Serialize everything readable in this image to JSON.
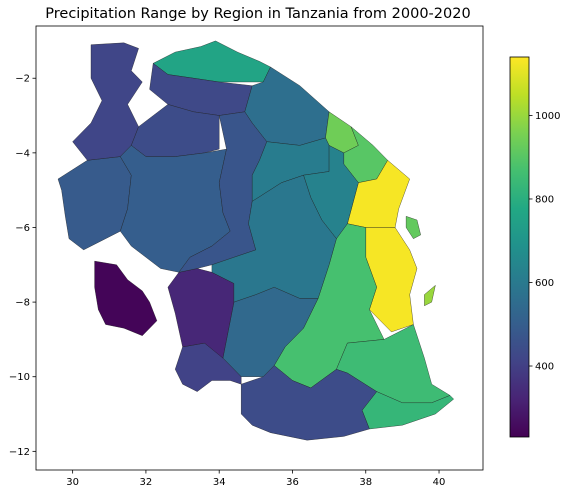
{
  "chart_data": {
    "type": "choropleth",
    "title": "Precipitation Range by Region in Tanzania from 2000-2020",
    "xlabel": "",
    "ylabel": "",
    "xlim": [
      29.0,
      41.2
    ],
    "ylim": [
      -12.5,
      -0.6
    ],
    "x_ticks": [
      30,
      32,
      34,
      36,
      38,
      40
    ],
    "y_ticks": [
      -2,
      -4,
      -6,
      -8,
      -10,
      -12
    ],
    "grid": false,
    "colormap": "viridis",
    "colorbar": {
      "range": [
        230,
        1140
      ],
      "ticks": [
        400,
        600,
        800,
        1000
      ],
      "placement": "right"
    },
    "regions": [
      {
        "value": 760,
        "coords": [
          [
            32.2,
            -1.6
          ],
          [
            32.8,
            -1.3
          ],
          [
            33.5,
            -1.15
          ],
          [
            33.9,
            -1.0
          ],
          [
            34.5,
            -1.3
          ],
          [
            35.1,
            -1.55
          ],
          [
            35.4,
            -1.7
          ],
          [
            35.2,
            -2.1
          ],
          [
            34.0,
            -2.1
          ],
          [
            33.3,
            -2.0
          ],
          [
            32.6,
            -1.9
          ]
        ]
      },
      {
        "value": 430,
        "coords": [
          [
            32.2,
            -1.6
          ],
          [
            32.6,
            -1.9
          ],
          [
            33.3,
            -2.0
          ],
          [
            34.0,
            -2.1
          ],
          [
            34.9,
            -2.2
          ],
          [
            34.7,
            -2.9
          ],
          [
            34.0,
            -3.0
          ],
          [
            33.3,
            -2.9
          ],
          [
            32.6,
            -2.7
          ],
          [
            32.1,
            -2.3
          ]
        ]
      },
      {
        "value": 560,
        "coords": [
          [
            34.9,
            -2.2
          ],
          [
            35.2,
            -2.1
          ],
          [
            35.4,
            -1.7
          ],
          [
            36.2,
            -2.2
          ],
          [
            37.0,
            -2.9
          ],
          [
            36.9,
            -3.6
          ],
          [
            36.2,
            -3.8
          ],
          [
            35.3,
            -3.7
          ],
          [
            34.9,
            -3.2
          ],
          [
            34.7,
            -2.9
          ]
        ]
      },
      {
        "value": 940,
        "coords": [
          [
            37.0,
            -2.9
          ],
          [
            37.6,
            -3.3
          ],
          [
            37.8,
            -3.8
          ],
          [
            37.4,
            -4.0
          ],
          [
            37.0,
            -3.8
          ],
          [
            36.9,
            -3.6
          ]
        ]
      },
      {
        "value": 900,
        "coords": [
          [
            37.6,
            -3.3
          ],
          [
            38.2,
            -3.8
          ],
          [
            38.6,
            -4.2
          ],
          [
            38.3,
            -4.7
          ],
          [
            37.8,
            -4.8
          ],
          [
            37.4,
            -4.3
          ],
          [
            37.4,
            -4.0
          ],
          [
            37.8,
            -3.8
          ]
        ]
      },
      {
        "value": 1130,
        "coords": [
          [
            38.6,
            -4.2
          ],
          [
            39.2,
            -4.7
          ],
          [
            38.9,
            -5.5
          ],
          [
            38.8,
            -6.0
          ],
          [
            38.0,
            -6.0
          ],
          [
            37.5,
            -5.9
          ],
          [
            37.8,
            -4.8
          ],
          [
            38.3,
            -4.7
          ]
        ]
      },
      {
        "value": 1130,
        "coords": [
          [
            38.8,
            -6.0
          ],
          [
            39.2,
            -6.6
          ],
          [
            39.4,
            -7.1
          ],
          [
            39.2,
            -7.8
          ],
          [
            39.3,
            -8.6
          ],
          [
            38.7,
            -8.8
          ],
          [
            38.1,
            -8.2
          ],
          [
            38.3,
            -7.6
          ],
          [
            38.0,
            -6.8
          ],
          [
            38.0,
            -6.0
          ]
        ]
      },
      {
        "value": 920,
        "coords": [
          [
            39.1,
            -5.7
          ],
          [
            39.4,
            -5.8
          ],
          [
            39.5,
            -6.2
          ],
          [
            39.3,
            -6.3
          ],
          [
            39.1,
            -6.0
          ]
        ]
      },
      {
        "value": 1000,
        "coords": [
          [
            39.6,
            -7.8
          ],
          [
            39.9,
            -7.55
          ],
          [
            39.8,
            -8.0
          ],
          [
            39.6,
            -8.1
          ]
        ]
      },
      {
        "value": 870,
        "coords": [
          [
            37.5,
            -5.9
          ],
          [
            38.0,
            -6.0
          ],
          [
            38.0,
            -6.8
          ],
          [
            38.3,
            -7.6
          ],
          [
            38.1,
            -8.2
          ],
          [
            38.5,
            -9.0
          ],
          [
            37.5,
            -9.1
          ],
          [
            37.2,
            -9.8
          ],
          [
            36.5,
            -10.3
          ],
          [
            36.0,
            -10.1
          ],
          [
            35.5,
            -9.7
          ],
          [
            35.8,
            -9.2
          ],
          [
            36.3,
            -8.7
          ],
          [
            36.7,
            -7.9
          ],
          [
            37.0,
            -7.0
          ],
          [
            37.2,
            -6.3
          ]
        ]
      },
      {
        "value": 850,
        "coords": [
          [
            38.5,
            -9.0
          ],
          [
            39.3,
            -8.6
          ],
          [
            39.6,
            -9.5
          ],
          [
            39.8,
            -10.2
          ],
          [
            40.3,
            -10.5
          ],
          [
            39.8,
            -10.7
          ],
          [
            39.0,
            -10.7
          ],
          [
            38.3,
            -10.4
          ],
          [
            37.5,
            -9.9
          ],
          [
            37.2,
            -9.8
          ],
          [
            37.5,
            -9.1
          ]
        ]
      },
      {
        "value": 830,
        "coords": [
          [
            38.3,
            -10.4
          ],
          [
            39.0,
            -10.7
          ],
          [
            39.8,
            -10.7
          ],
          [
            40.3,
            -10.5
          ],
          [
            40.4,
            -10.6
          ],
          [
            39.9,
            -11.0
          ],
          [
            39.0,
            -11.3
          ],
          [
            38.1,
            -11.4
          ],
          [
            37.9,
            -10.9
          ]
        ]
      },
      {
        "value": 440,
        "coords": [
          [
            34.6,
            -10.2
          ],
          [
            35.2,
            -10.0
          ],
          [
            35.5,
            -9.7
          ],
          [
            36.0,
            -10.1
          ],
          [
            36.5,
            -10.3
          ],
          [
            37.2,
            -9.8
          ],
          [
            37.5,
            -9.9
          ],
          [
            38.3,
            -10.4
          ],
          [
            37.9,
            -10.9
          ],
          [
            38.1,
            -11.4
          ],
          [
            37.4,
            -11.6
          ],
          [
            36.4,
            -11.7
          ],
          [
            35.4,
            -11.5
          ],
          [
            34.9,
            -11.3
          ],
          [
            34.6,
            -11.0
          ]
        ]
      },
      {
        "value": 540,
        "coords": [
          [
            34.4,
            -8.0
          ],
          [
            35.0,
            -7.8
          ],
          [
            35.5,
            -7.6
          ],
          [
            36.2,
            -7.9
          ],
          [
            36.7,
            -7.9
          ],
          [
            36.3,
            -8.7
          ],
          [
            35.8,
            -9.2
          ],
          [
            35.5,
            -9.7
          ],
          [
            35.2,
            -10.0
          ],
          [
            34.6,
            -10.0
          ],
          [
            34.1,
            -9.5
          ]
        ]
      },
      {
        "value": 410,
        "coords": [
          [
            33.0,
            -9.2
          ],
          [
            33.6,
            -9.1
          ],
          [
            34.0,
            -9.4
          ],
          [
            34.6,
            -10.0
          ],
          [
            34.6,
            -10.2
          ],
          [
            34.3,
            -10.1
          ],
          [
            33.8,
            -10.1
          ],
          [
            33.4,
            -10.4
          ],
          [
            33.0,
            -10.2
          ],
          [
            32.8,
            -9.8
          ]
        ]
      },
      {
        "value": 330,
        "coords": [
          [
            32.9,
            -7.2
          ],
          [
            33.4,
            -7.1
          ],
          [
            33.8,
            -7.2
          ],
          [
            34.4,
            -7.5
          ],
          [
            34.4,
            -8.0
          ],
          [
            34.1,
            -9.5
          ],
          [
            33.6,
            -9.1
          ],
          [
            33.0,
            -9.2
          ],
          [
            32.8,
            -8.3
          ],
          [
            32.6,
            -7.6
          ]
        ]
      },
      {
        "value": 240,
        "coords": [
          [
            30.6,
            -6.9
          ],
          [
            31.2,
            -7.0
          ],
          [
            31.5,
            -7.4
          ],
          [
            31.9,
            -7.7
          ],
          [
            32.1,
            -8.0
          ],
          [
            32.3,
            -8.5
          ],
          [
            31.9,
            -8.9
          ],
          [
            31.4,
            -8.7
          ],
          [
            30.9,
            -8.6
          ],
          [
            30.7,
            -8.2
          ],
          [
            30.6,
            -7.6
          ]
        ]
      },
      {
        "value": 490,
        "coords": [
          [
            30.4,
            -4.2
          ],
          [
            31.3,
            -4.1
          ],
          [
            31.6,
            -4.6
          ],
          [
            31.5,
            -5.5
          ],
          [
            31.3,
            -6.1
          ],
          [
            30.9,
            -6.3
          ],
          [
            30.3,
            -6.6
          ],
          [
            29.9,
            -6.3
          ],
          [
            29.8,
            -5.7
          ],
          [
            29.7,
            -5.0
          ],
          [
            29.6,
            -4.7
          ]
        ]
      },
      {
        "value": 420,
        "coords": [
          [
            30.5,
            -1.1
          ],
          [
            31.4,
            -1.05
          ],
          [
            31.8,
            -1.2
          ],
          [
            31.6,
            -1.8
          ],
          [
            31.9,
            -2.1
          ],
          [
            31.5,
            -2.7
          ],
          [
            31.8,
            -3.3
          ],
          [
            31.6,
            -3.8
          ],
          [
            31.3,
            -4.1
          ],
          [
            30.4,
            -4.2
          ],
          [
            30.0,
            -3.7
          ],
          [
            30.5,
            -3.2
          ],
          [
            30.8,
            -2.6
          ],
          [
            30.5,
            -2.0
          ]
        ]
      },
      {
        "value": 440,
        "coords": [
          [
            31.8,
            -3.3
          ],
          [
            32.6,
            -2.7
          ],
          [
            33.3,
            -2.9
          ],
          [
            34.0,
            -3.0
          ],
          [
            34.0,
            -3.9
          ],
          [
            33.6,
            -4.0
          ],
          [
            32.8,
            -4.1
          ],
          [
            32.0,
            -4.1
          ],
          [
            31.6,
            -3.8
          ]
        ]
      },
      {
        "value": 500,
        "coords": [
          [
            31.3,
            -4.1
          ],
          [
            31.6,
            -3.8
          ],
          [
            32.0,
            -4.1
          ],
          [
            32.8,
            -4.1
          ],
          [
            33.6,
            -4.0
          ],
          [
            34.2,
            -3.9
          ],
          [
            34.0,
            -4.8
          ],
          [
            34.1,
            -5.6
          ],
          [
            34.3,
            -6.1
          ],
          [
            33.8,
            -6.5
          ],
          [
            33.2,
            -6.8
          ],
          [
            32.9,
            -7.2
          ],
          [
            32.4,
            -7.1
          ],
          [
            31.6,
            -6.5
          ],
          [
            31.3,
            -6.1
          ],
          [
            31.5,
            -5.5
          ],
          [
            31.6,
            -4.6
          ]
        ]
      },
      {
        "value": 470,
        "coords": [
          [
            34.0,
            -3.0
          ],
          [
            34.7,
            -2.9
          ],
          [
            34.9,
            -3.2
          ],
          [
            35.3,
            -3.7
          ],
          [
            35.1,
            -4.2
          ],
          [
            34.9,
            -4.6
          ],
          [
            34.9,
            -5.3
          ],
          [
            34.8,
            -5.9
          ],
          [
            35.0,
            -6.6
          ],
          [
            34.4,
            -6.8
          ],
          [
            33.8,
            -7.0
          ],
          [
            33.4,
            -7.1
          ],
          [
            32.9,
            -7.2
          ],
          [
            33.2,
            -6.8
          ],
          [
            33.8,
            -6.5
          ],
          [
            34.3,
            -6.1
          ],
          [
            34.1,
            -5.6
          ],
          [
            34.0,
            -4.8
          ],
          [
            34.2,
            -3.9
          ]
        ]
      },
      {
        "value": 610,
        "coords": [
          [
            35.3,
            -3.7
          ],
          [
            36.2,
            -3.8
          ],
          [
            36.9,
            -3.6
          ],
          [
            37.0,
            -3.8
          ],
          [
            37.0,
            -4.5
          ],
          [
            36.3,
            -4.6
          ],
          [
            35.7,
            -4.8
          ],
          [
            34.9,
            -5.3
          ],
          [
            34.9,
            -4.6
          ],
          [
            35.1,
            -4.2
          ]
        ]
      },
      {
        "value": 630,
        "coords": [
          [
            37.0,
            -3.8
          ],
          [
            37.4,
            -4.0
          ],
          [
            37.4,
            -4.3
          ],
          [
            37.8,
            -4.8
          ],
          [
            37.5,
            -5.9
          ],
          [
            37.2,
            -6.3
          ],
          [
            36.8,
            -5.8
          ],
          [
            36.5,
            -5.2
          ],
          [
            36.3,
            -4.6
          ],
          [
            37.0,
            -4.5
          ]
        ]
      },
      {
        "value": 590,
        "coords": [
          [
            34.9,
            -5.3
          ],
          [
            35.7,
            -4.8
          ],
          [
            36.3,
            -4.6
          ],
          [
            36.5,
            -5.2
          ],
          [
            36.8,
            -5.8
          ],
          [
            37.2,
            -6.3
          ],
          [
            37.0,
            -7.0
          ],
          [
            36.7,
            -7.9
          ],
          [
            36.2,
            -7.9
          ],
          [
            35.5,
            -7.6
          ],
          [
            35.0,
            -7.8
          ],
          [
            34.4,
            -8.0
          ],
          [
            34.4,
            -7.5
          ],
          [
            33.8,
            -7.2
          ],
          [
            33.8,
            -7.0
          ],
          [
            34.4,
            -6.8
          ],
          [
            35.0,
            -6.6
          ],
          [
            34.8,
            -5.9
          ]
        ]
      }
    ]
  }
}
